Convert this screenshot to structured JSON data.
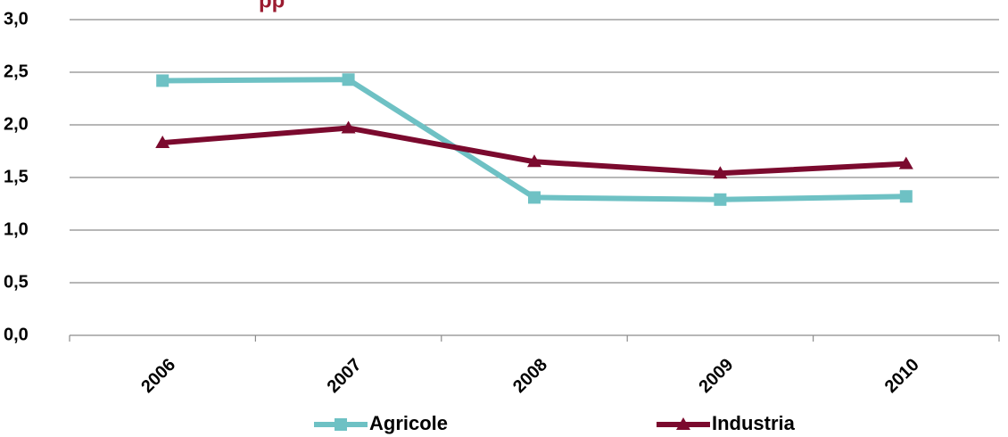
{
  "chart_data": {
    "type": "line",
    "title": "",
    "title_fragment": "pp",
    "title_color": "#9B1B30",
    "xlabel": "",
    "ylabel": "",
    "categories": [
      "2006",
      "2007",
      "2008",
      "2009",
      "2010"
    ],
    "y_tick_labels": [
      "0,0",
      "0,5",
      "1,0",
      "1,5",
      "2,0",
      "2,5",
      "3,0"
    ],
    "ylim": [
      0,
      3
    ],
    "y_step": 0.5,
    "grid": "horizontal",
    "legend_position": "bottom",
    "series": [
      {
        "name": "Agricole",
        "values": [
          2.42,
          2.43,
          1.31,
          1.29,
          1.32
        ],
        "color": "#6EC1C4",
        "marker": "square"
      },
      {
        "name": "Industria",
        "values": [
          1.83,
          1.97,
          1.65,
          1.54,
          1.63
        ],
        "color": "#7B0A2E",
        "marker": "triangle"
      }
    ]
  }
}
